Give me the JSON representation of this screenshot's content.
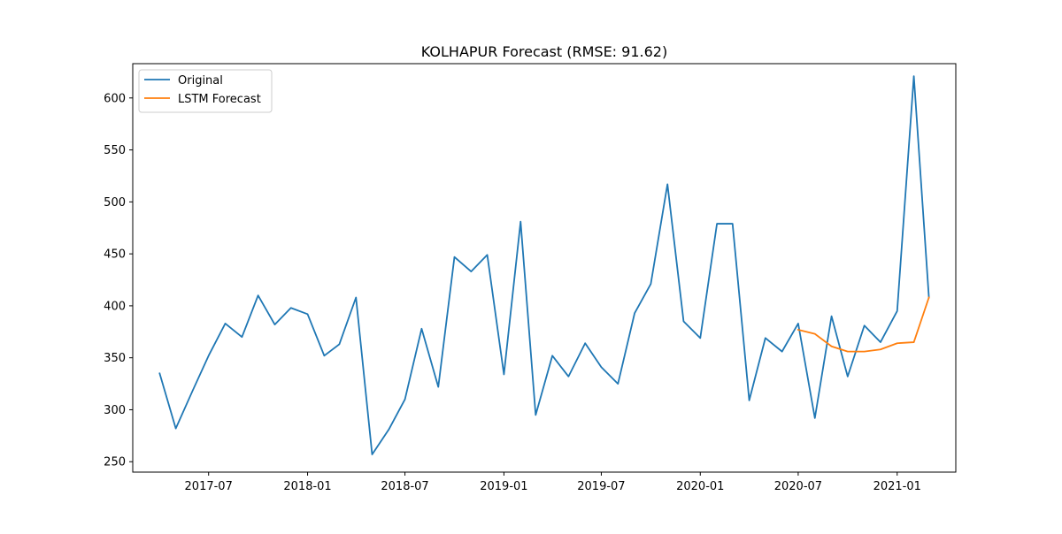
{
  "chart_data": {
    "type": "line",
    "title": "KOLHAPUR Forecast (RMSE: 91.62)",
    "xlabel": "",
    "ylabel": "",
    "x_ticks": [
      "2017-07",
      "2018-01",
      "2018-07",
      "2019-01",
      "2019-07",
      "2020-01",
      "2020-07",
      "2021-01"
    ],
    "y_ticks": [
      250,
      300,
      350,
      400,
      450,
      500,
      550,
      600
    ],
    "xlim": [
      "2017-02-10",
      "2021-04-20"
    ],
    "ylim": [
      240,
      633
    ],
    "legend_position": "top-left",
    "grid": false,
    "series": [
      {
        "name": "Original",
        "color": "#1f77b4",
        "x": [
          "2017-04-01",
          "2017-05-01",
          "2017-06-01",
          "2017-07-01",
          "2017-08-01",
          "2017-09-01",
          "2017-10-01",
          "2017-11-01",
          "2017-12-01",
          "2018-01-01",
          "2018-02-01",
          "2018-03-01",
          "2018-04-01",
          "2018-05-01",
          "2018-06-01",
          "2018-07-01",
          "2018-08-01",
          "2018-09-01",
          "2018-10-01",
          "2018-11-01",
          "2018-12-01",
          "2019-01-01",
          "2019-02-01",
          "2019-03-01",
          "2019-04-01",
          "2019-05-01",
          "2019-06-01",
          "2019-07-01",
          "2019-08-01",
          "2019-09-01",
          "2019-10-01",
          "2019-11-01",
          "2019-12-01",
          "2020-01-01",
          "2020-02-01",
          "2020-03-01",
          "2020-04-01",
          "2020-05-01",
          "2020-06-01",
          "2020-07-01",
          "2020-08-01",
          "2020-09-01",
          "2020-10-01",
          "2020-11-01",
          "2020-12-01",
          "2021-01-01",
          "2021-02-01",
          "2021-03-01"
        ],
        "y": [
          335,
          282,
          318,
          352,
          383,
          370,
          410,
          382,
          398,
          392,
          352,
          363,
          408,
          257,
          281,
          310,
          378,
          322,
          447,
          433,
          449,
          334,
          481,
          295,
          352,
          332,
          364,
          341,
          325,
          393,
          421,
          517,
          385,
          369,
          479,
          479,
          309,
          369,
          356,
          383,
          292,
          390,
          332,
          381,
          365,
          395,
          621,
          408
        ]
      },
      {
        "name": "LSTM Forecast",
        "color": "#ff7f0e",
        "x": [
          "2020-07-01",
          "2020-08-01",
          "2020-09-01",
          "2020-10-01",
          "2020-11-01",
          "2020-12-01",
          "2021-01-01",
          "2021-02-01",
          "2021-03-01"
        ],
        "y": [
          377,
          373,
          361,
          356,
          356,
          358,
          364,
          365,
          408
        ]
      }
    ]
  }
}
